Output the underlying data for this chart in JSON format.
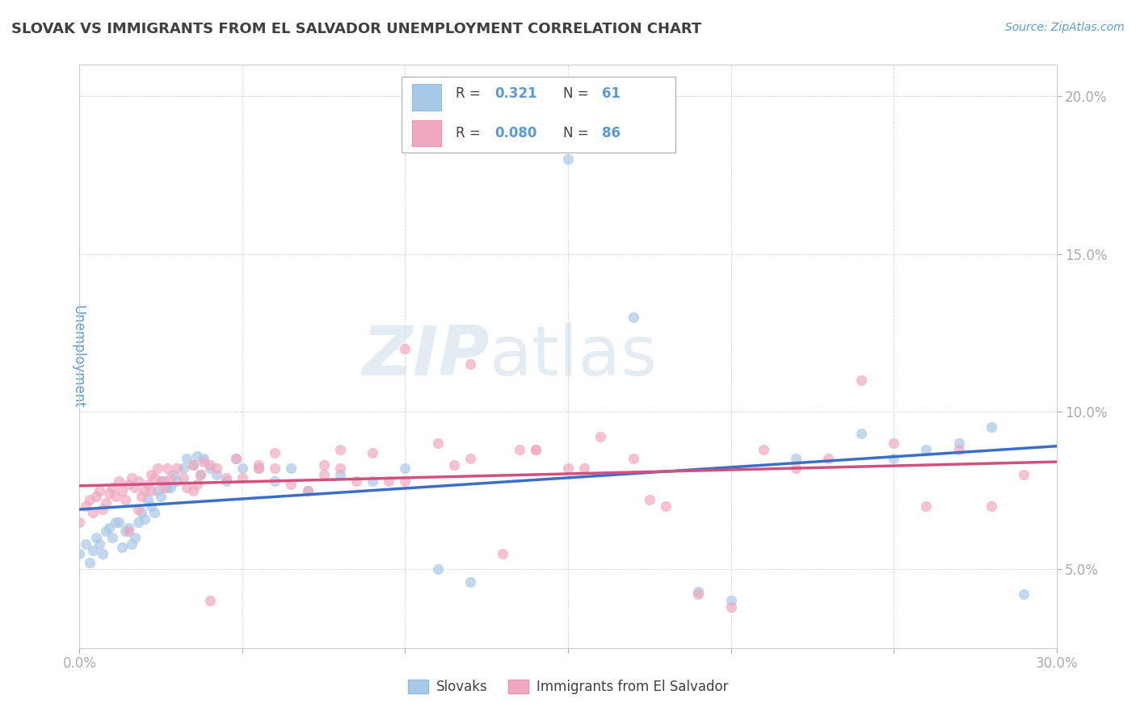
{
  "title": "SLOVAK VS IMMIGRANTS FROM EL SALVADOR UNEMPLOYMENT CORRELATION CHART",
  "source": "Source: ZipAtlas.com",
  "ylabel": "Unemployment",
  "xlim": [
    0.0,
    0.3
  ],
  "ylim": [
    0.025,
    0.21
  ],
  "yticks": [
    0.05,
    0.1,
    0.15,
    0.2
  ],
  "ytick_labels": [
    "5.0%",
    "10.0%",
    "15.0%",
    "20.0%"
  ],
  "xticks": [
    0.0,
    0.05,
    0.1,
    0.15,
    0.2,
    0.25,
    0.3
  ],
  "xtick_labels": [
    "0.0%",
    "",
    "",
    "",
    "",
    "",
    "30.0%"
  ],
  "blue_R": 0.321,
  "blue_N": 61,
  "pink_R": 0.08,
  "pink_N": 86,
  "blue_color": "#A8C8E8",
  "pink_color": "#F0A8C0",
  "blue_line_color": "#3A6FC4",
  "pink_line_color": "#D05080",
  "title_color": "#404040",
  "axis_label_color": "#5B9BD5",
  "background_color": "#FFFFFF",
  "blue_scatter_x": [
    0.0,
    0.002,
    0.003,
    0.004,
    0.005,
    0.006,
    0.007,
    0.008,
    0.009,
    0.01,
    0.011,
    0.012,
    0.013,
    0.014,
    0.015,
    0.016,
    0.017,
    0.018,
    0.019,
    0.02,
    0.021,
    0.022,
    0.023,
    0.024,
    0.025,
    0.026,
    0.027,
    0.028,
    0.029,
    0.03,
    0.032,
    0.033,
    0.035,
    0.036,
    0.037,
    0.038,
    0.04,
    0.042,
    0.045,
    0.048,
    0.05,
    0.055,
    0.06,
    0.065,
    0.07,
    0.08,
    0.09,
    0.1,
    0.11,
    0.12,
    0.15,
    0.17,
    0.19,
    0.2,
    0.22,
    0.24,
    0.25,
    0.26,
    0.27,
    0.28,
    0.29
  ],
  "blue_scatter_y": [
    0.055,
    0.058,
    0.052,
    0.056,
    0.06,
    0.058,
    0.055,
    0.062,
    0.063,
    0.06,
    0.065,
    0.065,
    0.057,
    0.062,
    0.063,
    0.058,
    0.06,
    0.065,
    0.068,
    0.066,
    0.072,
    0.07,
    0.068,
    0.075,
    0.073,
    0.078,
    0.076,
    0.076,
    0.08,
    0.078,
    0.082,
    0.085,
    0.083,
    0.086,
    0.08,
    0.085,
    0.082,
    0.08,
    0.078,
    0.085,
    0.082,
    0.082,
    0.078,
    0.082,
    0.075,
    0.08,
    0.078,
    0.082,
    0.05,
    0.046,
    0.18,
    0.13,
    0.043,
    0.04,
    0.085,
    0.093,
    0.085,
    0.088,
    0.09,
    0.095,
    0.042
  ],
  "pink_scatter_x": [
    0.0,
    0.002,
    0.003,
    0.004,
    0.005,
    0.006,
    0.007,
    0.008,
    0.009,
    0.01,
    0.011,
    0.012,
    0.013,
    0.014,
    0.015,
    0.016,
    0.017,
    0.018,
    0.019,
    0.02,
    0.021,
    0.022,
    0.023,
    0.024,
    0.025,
    0.026,
    0.027,
    0.028,
    0.03,
    0.032,
    0.033,
    0.035,
    0.036,
    0.037,
    0.038,
    0.04,
    0.042,
    0.045,
    0.048,
    0.05,
    0.055,
    0.06,
    0.065,
    0.07,
    0.075,
    0.08,
    0.085,
    0.09,
    0.1,
    0.11,
    0.12,
    0.13,
    0.14,
    0.15,
    0.16,
    0.17,
    0.18,
    0.19,
    0.2,
    0.21,
    0.22,
    0.23,
    0.24,
    0.25,
    0.26,
    0.27,
    0.28,
    0.29,
    0.1,
    0.12,
    0.14,
    0.08,
    0.06,
    0.04,
    0.025,
    0.015,
    0.018,
    0.022,
    0.035,
    0.055,
    0.075,
    0.095,
    0.115,
    0.135,
    0.155,
    0.175
  ],
  "pink_scatter_y": [
    0.065,
    0.07,
    0.072,
    0.068,
    0.073,
    0.075,
    0.069,
    0.071,
    0.074,
    0.076,
    0.073,
    0.078,
    0.075,
    0.072,
    0.077,
    0.079,
    0.076,
    0.078,
    0.073,
    0.075,
    0.077,
    0.08,
    0.079,
    0.082,
    0.078,
    0.076,
    0.082,
    0.079,
    0.082,
    0.079,
    0.076,
    0.083,
    0.077,
    0.08,
    0.084,
    0.083,
    0.082,
    0.079,
    0.085,
    0.079,
    0.082,
    0.087,
    0.077,
    0.075,
    0.083,
    0.088,
    0.078,
    0.087,
    0.078,
    0.09,
    0.085,
    0.055,
    0.088,
    0.082,
    0.092,
    0.085,
    0.07,
    0.042,
    0.038,
    0.088,
    0.082,
    0.085,
    0.11,
    0.09,
    0.07,
    0.088,
    0.07,
    0.08,
    0.12,
    0.115,
    0.088,
    0.082,
    0.082,
    0.04,
    0.078,
    0.062,
    0.069,
    0.075,
    0.075,
    0.083,
    0.08,
    0.078,
    0.083,
    0.088,
    0.082,
    0.072
  ]
}
